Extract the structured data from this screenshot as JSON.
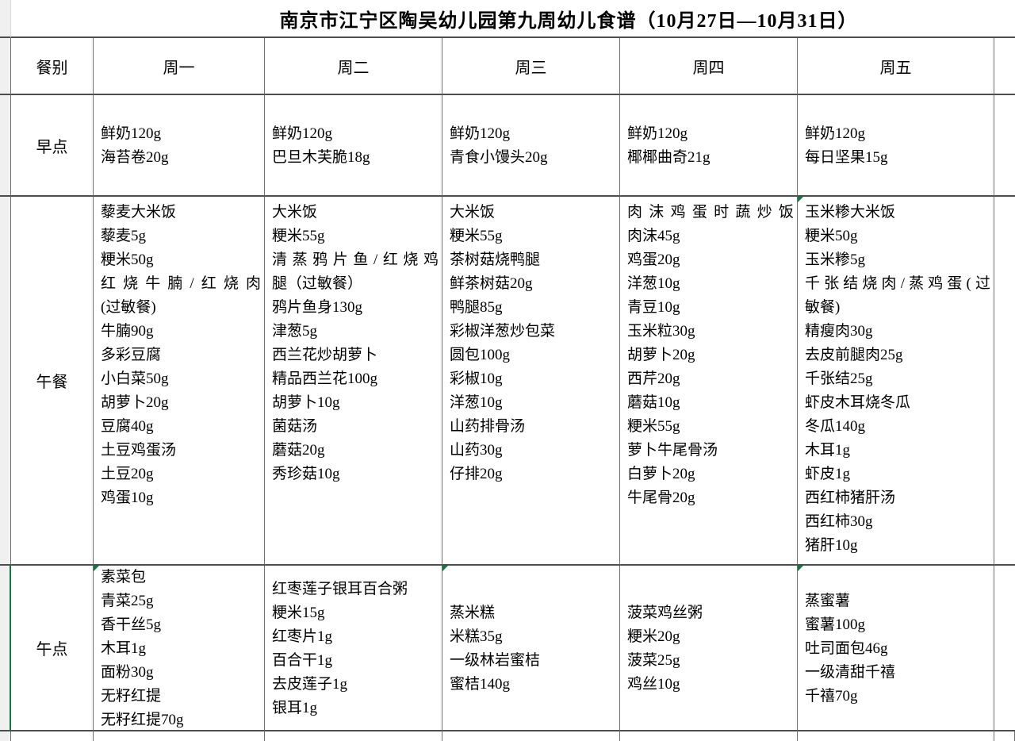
{
  "title": "南京市江宁区陶吴幼儿园第九周幼儿食谱（10月27日—10月31日）",
  "columns": {
    "meal_label": "餐别",
    "days": [
      "周一",
      "周二",
      "周三",
      "周四",
      "周五"
    ]
  },
  "meals": [
    {
      "label": "早点",
      "days": [
        {
          "lines": [
            "鲜奶120g",
            "海苔卷20g"
          ]
        },
        {
          "lines": [
            "鲜奶120g",
            "巴旦木芙脆18g"
          ]
        },
        {
          "lines": [
            "鲜奶120g",
            "青食小馒头20g"
          ]
        },
        {
          "lines": [
            "鲜奶120g",
            "椰椰曲奇21g"
          ]
        },
        {
          "lines": [
            "鲜奶120g",
            "每日坚果15g"
          ]
        }
      ]
    },
    {
      "label": "午餐",
      "days": [
        {
          "lines": [
            "藜麦大米饭",
            "藜麦5g",
            "粳米50g",
            {
              "text": "红烧牛腩/红烧肉",
              "stretch": true
            },
            "(过敏餐)",
            "牛腩90g",
            "多彩豆腐",
            "小白菜50g",
            "胡萝卜20g",
            "豆腐40g",
            "土豆鸡蛋汤",
            "土豆20g",
            "鸡蛋10g"
          ]
        },
        {
          "lines": [
            "大米饭",
            "粳米55g",
            {
              "text": "清蒸鸦片鱼/红烧鸡",
              "stretch": true
            },
            "腿（过敏餐）",
            "鸦片鱼身130g",
            "津葱5g",
            "西兰花炒胡萝卜",
            "精品西兰花100g",
            "胡萝卜10g",
            "菌菇汤",
            "蘑菇20g",
            "秀珍菇10g"
          ]
        },
        {
          "lines": [
            "大米饭",
            "粳米55g",
            "茶树菇烧鸭腿",
            "鲜茶树菇20g",
            "鸭腿85g",
            "彩椒洋葱炒包菜",
            "圆包100g",
            "彩椒10g",
            "洋葱10g",
            "山药排骨汤",
            "山药30g",
            "仔排20g"
          ]
        },
        {
          "lines": [
            {
              "text": "肉沫鸡蛋时蔬炒饭",
              "stretch": true
            },
            "肉沫45g",
            "鸡蛋20g",
            "洋葱10g",
            "青豆10g",
            "玉米粒30g",
            "胡萝卜20g",
            "西芹20g",
            "蘑菇10g",
            "粳米55g",
            "萝卜牛尾骨汤",
            "白萝卜20g",
            "牛尾骨20g"
          ]
        },
        {
          "lines": [
            "玉米糁大米饭",
            "粳米50g",
            "玉米糁5g",
            {
              "text": "千张结烧肉/蒸鸡蛋(过",
              "stretch": true
            },
            "敏餐)",
            "精瘦肉30g",
            "去皮前腿肉25g",
            "千张结25g",
            "虾皮木耳烧冬瓜",
            "冬瓜140g",
            "木耳1g",
            "虾皮1g",
            "西红柿猪肝汤",
            "西红柿30g",
            "猪肝10g"
          ]
        }
      ]
    },
    {
      "label": "午点",
      "days": [
        {
          "lines": [
            "素菜包",
            "青菜25g",
            "香干丝5g",
            "木耳1g",
            "面粉30g",
            "无籽红提",
            "无籽红提70g"
          ]
        },
        {
          "lines": [
            "红枣莲子银耳百合粥",
            "粳米15g",
            "红枣片1g",
            "百合干1g",
            "去皮莲子1g",
            "银耳1g"
          ]
        },
        {
          "lines": [
            "蒸米糕",
            "米糕35g",
            "一级林岩蜜桔",
            "蜜桔140g"
          ]
        },
        {
          "lines": [
            "菠菜鸡丝粥",
            "粳米20g",
            "菠菜25g",
            "鸡丝10g"
          ]
        },
        {
          "lines": [
            "蒸蜜薯",
            "蜜薯100g",
            "吐司面包46g",
            "一级清甜千禧",
            "千禧70g"
          ]
        }
      ]
    }
  ],
  "colors": {
    "accent_green": "#107c41",
    "border_dark": "#4d4d4d",
    "border_light": "#6f6f6f",
    "margin_gray": "#f0f0f0",
    "background": "#ffffff"
  }
}
